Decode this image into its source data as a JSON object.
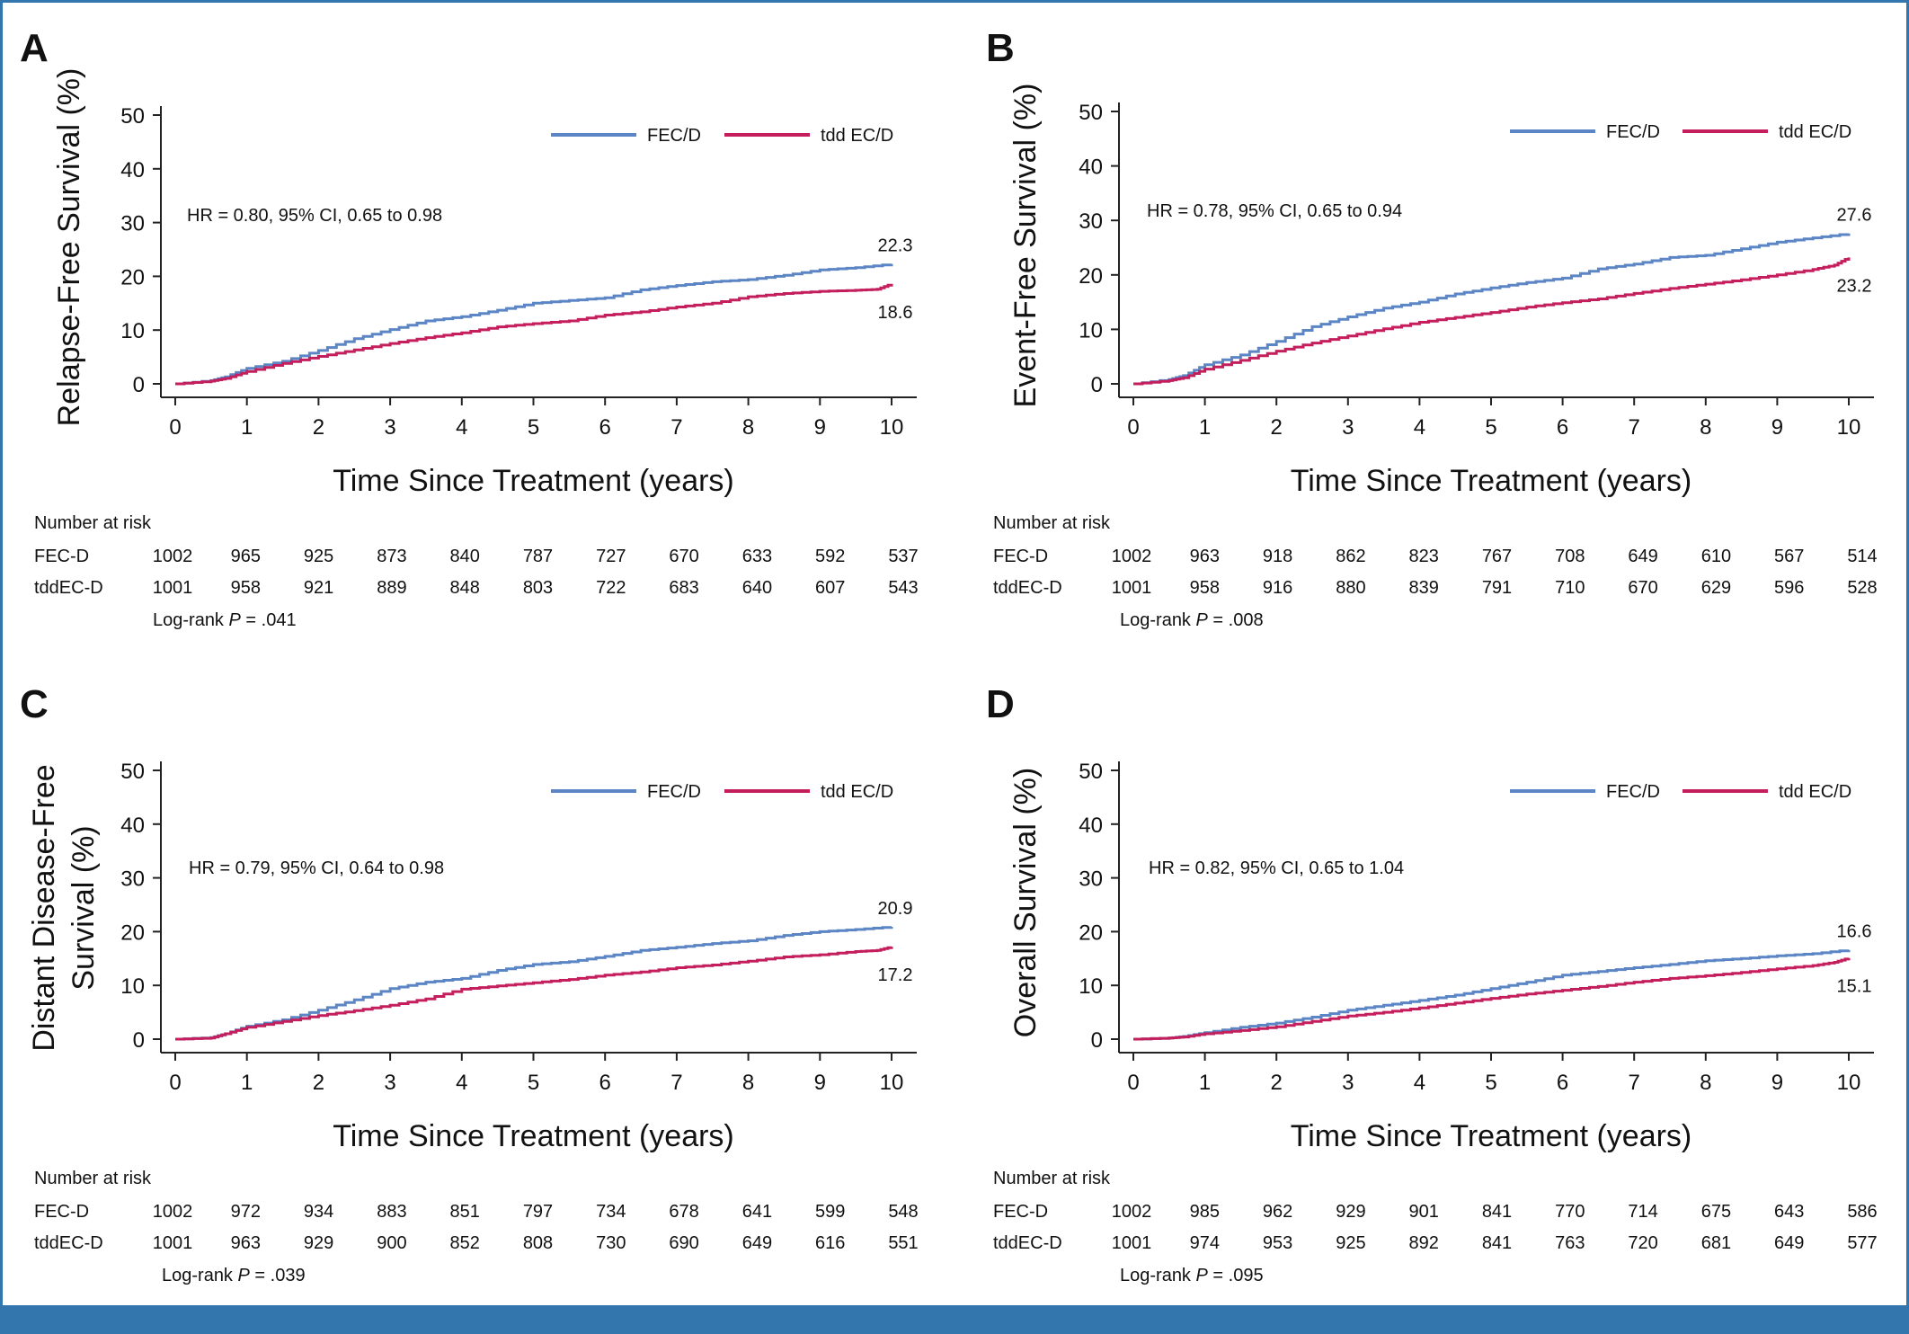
{
  "colors": {
    "fec": "#5b85c4",
    "tdd": "#c41e5d",
    "frame": "#3276ad",
    "axis": "#222222"
  },
  "chart_data": [
    {
      "panel": "A",
      "type": "line",
      "ylabel_lines": [
        "Relapse-Free Survival (%)"
      ],
      "xlabel": "Time Since Treatment (years)",
      "xlim": [
        0,
        10
      ],
      "ylim": [
        0,
        50
      ],
      "x_ticks": [
        "0",
        "1",
        "2",
        "3",
        "4",
        "5",
        "6",
        "7",
        "8",
        "9",
        "10"
      ],
      "y_ticks": [
        "0",
        "10",
        "20",
        "30",
        "40",
        "50"
      ],
      "hr_text": "HR = 0.80, 95% CI, 0.65 to 0.98",
      "legend": [
        "FEC/D",
        "tdd EC/D"
      ],
      "series": [
        {
          "name": "FEC/D",
          "end_label": "22.3",
          "x": [
            0,
            0.5,
            0.7,
            1,
            1.5,
            2,
            2.5,
            3,
            3.5,
            4,
            4.5,
            5,
            5.5,
            6,
            6.5,
            7,
            7.5,
            8,
            8.5,
            9,
            9.5,
            10
          ],
          "y": [
            0,
            0.6,
            1.3,
            2.9,
            4.2,
            6.2,
            8.4,
            10.1,
            11.7,
            12.5,
            13.7,
            15.0,
            15.5,
            16.0,
            17.5,
            18.3,
            19.0,
            19.4,
            20.2,
            21.2,
            21.6,
            22.3
          ]
        },
        {
          "name": "tdd EC/D",
          "end_label": "18.6",
          "x": [
            0,
            0.5,
            0.7,
            1,
            1.5,
            2,
            2.5,
            3,
            3.5,
            4,
            4.5,
            5,
            5.5,
            6,
            6.5,
            7,
            7.5,
            8,
            8.5,
            9,
            9.5,
            9.8,
            10
          ],
          "y": [
            0,
            0.5,
            1.0,
            2.3,
            3.8,
            5.1,
            6.3,
            7.5,
            8.6,
            9.5,
            10.6,
            11.2,
            11.7,
            12.8,
            13.4,
            14.3,
            15.0,
            16.2,
            16.8,
            17.2,
            17.4,
            17.6,
            18.6
          ]
        }
      ],
      "risk": {
        "title": "Number at risk",
        "rows": [
          {
            "label": "FEC-D",
            "values": [
              "1002",
              "965",
              "925",
              "873",
              "840",
              "787",
              "727",
              "670",
              "633",
              "592",
              "537"
            ]
          },
          {
            "label": "tddEC-D",
            "values": [
              "1001",
              "958",
              "921",
              "889",
              "848",
              "803",
              "722",
              "683",
              "640",
              "607",
              "543"
            ]
          }
        ],
        "logrank_prefix": "Log-rank ",
        "logrank_p": "P",
        "logrank_value": " = .041"
      }
    },
    {
      "panel": "B",
      "type": "line",
      "ylabel_lines": [
        "Event-Free Survival (%)"
      ],
      "xlabel": "Time Since Treatment (years)",
      "xlim": [
        0,
        10
      ],
      "ylim": [
        0,
        50
      ],
      "x_ticks": [
        "0",
        "1",
        "2",
        "3",
        "4",
        "5",
        "6",
        "7",
        "8",
        "9",
        "10"
      ],
      "y_ticks": [
        "0",
        "10",
        "20",
        "30",
        "40",
        "50"
      ],
      "hr_text": "HR = 0.78, 95% CI, 0.65 to 0.94",
      "legend": [
        "FEC/D",
        "tdd EC/D"
      ],
      "series": [
        {
          "name": "FEC/D",
          "end_label": "27.6",
          "x": [
            0,
            0.5,
            0.7,
            1,
            1.5,
            2,
            2.5,
            3,
            3.5,
            4,
            4.5,
            5,
            5.5,
            6,
            6.5,
            7,
            7.5,
            8,
            8.5,
            9,
            9.5,
            10
          ],
          "y": [
            0,
            0.8,
            1.5,
            3.5,
            5.3,
            7.8,
            10.5,
            12.3,
            13.9,
            15.0,
            16.5,
            17.6,
            18.6,
            19.4,
            21.1,
            22.0,
            23.2,
            23.6,
            24.8,
            26.0,
            26.8,
            27.6
          ]
        },
        {
          "name": "tdd EC/D",
          "end_label": "23.2",
          "x": [
            0,
            0.5,
            0.7,
            1,
            1.5,
            2,
            2.5,
            3,
            3.5,
            4,
            4.5,
            5,
            5.5,
            6,
            6.5,
            7,
            7.5,
            8,
            8.5,
            9,
            9.5,
            9.8,
            10
          ],
          "y": [
            0,
            0.6,
            1.1,
            2.7,
            4.3,
            6.0,
            7.5,
            8.8,
            10.1,
            11.3,
            12.2,
            13.1,
            14.1,
            14.9,
            15.6,
            16.6,
            17.5,
            18.3,
            19.1,
            20.0,
            21.0,
            21.8,
            23.2
          ]
        }
      ],
      "risk": {
        "title": "Number at risk",
        "rows": [
          {
            "label": "FEC-D",
            "values": [
              "1002",
              "963",
              "918",
              "862",
              "823",
              "767",
              "708",
              "649",
              "610",
              "567",
              "514"
            ]
          },
          {
            "label": "tddEC-D",
            "values": [
              "1001",
              "958",
              "916",
              "880",
              "839",
              "791",
              "710",
              "670",
              "629",
              "596",
              "528"
            ]
          }
        ],
        "logrank_prefix": "Log-rank ",
        "logrank_p": "P",
        "logrank_value": " = .008"
      }
    },
    {
      "panel": "C",
      "type": "line",
      "ylabel_lines": [
        "Distant Disease-Free",
        "Survival (%)"
      ],
      "xlabel": "Time Since Treatment (years)",
      "xlim": [
        0,
        10
      ],
      "ylim": [
        0,
        50
      ],
      "x_ticks": [
        "0",
        "1",
        "2",
        "3",
        "4",
        "5",
        "6",
        "7",
        "8",
        "9",
        "10"
      ],
      "y_ticks": [
        "0",
        "10",
        "20",
        "30",
        "40",
        "50"
      ],
      "hr_text": "HR = 0.79, 95% CI, 0.64 to 0.98",
      "legend": [
        "FEC/D",
        "tdd EC/D"
      ],
      "series": [
        {
          "name": "FEC/D",
          "end_label": "20.9",
          "x": [
            0,
            0.5,
            0.7,
            1,
            1.5,
            2,
            2.5,
            3,
            3.5,
            4,
            4.5,
            5,
            5.5,
            6,
            6.5,
            7,
            7.5,
            8,
            8.5,
            9,
            9.5,
            10
          ],
          "y": [
            0,
            0.3,
            1.0,
            2.4,
            3.6,
            5.4,
            7.3,
            9.4,
            10.6,
            11.3,
            12.8,
            13.9,
            14.4,
            15.4,
            16.5,
            17.1,
            17.8,
            18.3,
            19.3,
            20.0,
            20.4,
            20.9
          ]
        },
        {
          "name": "tdd EC/D",
          "end_label": "17.2",
          "x": [
            0,
            0.5,
            0.7,
            1,
            1.5,
            2,
            2.5,
            3,
            3.5,
            4,
            4.5,
            5,
            5.5,
            6,
            6.5,
            7,
            7.5,
            8,
            8.5,
            9,
            9.5,
            9.8,
            10
          ],
          "y": [
            0,
            0.2,
            1.0,
            2.2,
            3.3,
            4.4,
            5.3,
            6.3,
            7.5,
            9.3,
            9.9,
            10.5,
            11.1,
            11.9,
            12.5,
            13.3,
            13.8,
            14.5,
            15.3,
            15.7,
            16.3,
            16.5,
            17.2
          ]
        }
      ],
      "risk": {
        "title": "Number at risk",
        "rows": [
          {
            "label": "FEC-D",
            "values": [
              "1002",
              "972",
              "934",
              "883",
              "851",
              "797",
              "734",
              "678",
              "641",
              "599",
              "548"
            ]
          },
          {
            "label": "tddEC-D",
            "values": [
              "1001",
              "963",
              "929",
              "900",
              "852",
              "808",
              "730",
              "690",
              "649",
              "616",
              "551"
            ]
          }
        ],
        "logrank_prefix": "Log-rank ",
        "logrank_p": "P",
        "logrank_value": " = .039"
      }
    },
    {
      "panel": "D",
      "type": "line",
      "ylabel_lines": [
        "Overall Survival (%)"
      ],
      "xlabel": "Time Since Treatment (years)",
      "xlim": [
        0,
        10
      ],
      "ylim": [
        0,
        50
      ],
      "x_ticks": [
        "0",
        "1",
        "2",
        "3",
        "4",
        "5",
        "6",
        "7",
        "8",
        "9",
        "10"
      ],
      "y_ticks": [
        "0",
        "10",
        "20",
        "30",
        "40",
        "50"
      ],
      "hr_text": "HR = 0.82, 95% CI, 0.65 to 1.04",
      "legend": [
        "FEC/D",
        "tdd EC/D"
      ],
      "series": [
        {
          "name": "FEC/D",
          "end_label": "16.6",
          "x": [
            0,
            0.5,
            0.7,
            1,
            1.5,
            2,
            2.5,
            3,
            3.5,
            4,
            4.5,
            5,
            5.5,
            6,
            6.5,
            7,
            7.5,
            8,
            8.5,
            9,
            9.5,
            10
          ],
          "y": [
            0,
            0.2,
            0.5,
            1.2,
            2.2,
            3.0,
            4.1,
            5.4,
            6.3,
            7.2,
            8.2,
            9.4,
            10.6,
            11.9,
            12.6,
            13.3,
            13.9,
            14.6,
            15.0,
            15.5,
            15.9,
            16.6
          ]
        },
        {
          "name": "tdd EC/D",
          "end_label": "15.1",
          "x": [
            0,
            0.5,
            0.7,
            1,
            1.5,
            2,
            2.5,
            3,
            3.5,
            4,
            4.5,
            5,
            5.5,
            6,
            6.5,
            7,
            7.5,
            8,
            8.5,
            9,
            9.5,
            9.8,
            10
          ],
          "y": [
            0,
            0.2,
            0.4,
            1.0,
            1.6,
            2.3,
            3.3,
            4.3,
            5.0,
            5.8,
            6.7,
            7.6,
            8.4,
            9.1,
            9.8,
            10.6,
            11.3,
            11.8,
            12.4,
            13.1,
            13.7,
            14.3,
            15.1
          ]
        }
      ],
      "risk": {
        "title": "Number at risk",
        "rows": [
          {
            "label": "FEC-D",
            "values": [
              "1002",
              "985",
              "962",
              "929",
              "901",
              "841",
              "770",
              "714",
              "675",
              "643",
              "586"
            ]
          },
          {
            "label": "tddEC-D",
            "values": [
              "1001",
              "974",
              "953",
              "925",
              "892",
              "841",
              "763",
              "720",
              "681",
              "649",
              "577"
            ]
          }
        ],
        "logrank_prefix": "Log-rank ",
        "logrank_p": "P",
        "logrank_value": " = .095"
      }
    }
  ]
}
